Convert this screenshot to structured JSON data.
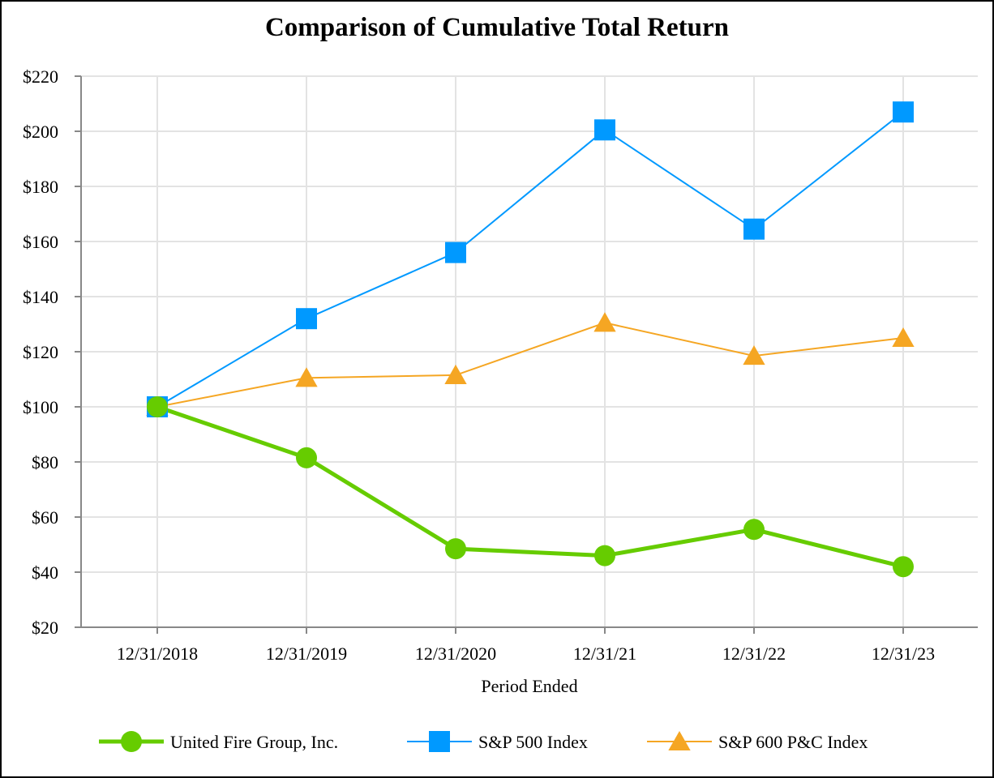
{
  "chart_data": {
    "type": "line",
    "title": "Comparison of Cumulative Total Return",
    "xlabel": "Period Ended",
    "ylabel": "",
    "categories": [
      "12/31/2018",
      "12/31/2019",
      "12/31/2020",
      "12/31/21",
      "12/31/22",
      "12/31/23"
    ],
    "ylim": [
      20,
      220
    ],
    "yticks": [
      20,
      40,
      60,
      80,
      100,
      120,
      140,
      160,
      180,
      200,
      220
    ],
    "ytick_labels": [
      "$20",
      "$40",
      "$60",
      "$80",
      "$100",
      "$120",
      "$140",
      "$160",
      "$180",
      "$200",
      "$220"
    ],
    "grid": true,
    "legend_position": "bottom",
    "series": [
      {
        "name": "United Fire Group, Inc.",
        "marker": "circle",
        "color": "#66cc00",
        "values": [
          100,
          81.5,
          48.5,
          46,
          55.5,
          42
        ]
      },
      {
        "name": "S&P 500 Index",
        "marker": "square",
        "color": "#0099ff",
        "values": [
          100,
          132,
          156,
          200.5,
          164.5,
          207
        ]
      },
      {
        "name": "S&P 600 P&C Index",
        "marker": "triangle",
        "color": "#f5a623",
        "values": [
          100,
          110.5,
          111.5,
          130.5,
          118.5,
          125
        ]
      }
    ]
  }
}
